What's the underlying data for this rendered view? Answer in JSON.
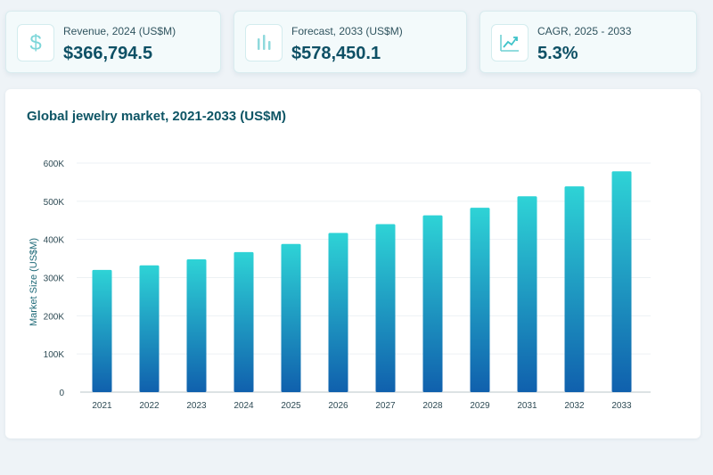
{
  "kpis": [
    {
      "label": "Revenue, 2024 (US$M)",
      "value": "$366,794.5",
      "icon": "dollar-icon"
    },
    {
      "label": "Forecast, 2033 (US$M)",
      "value": "$578,450.1",
      "icon": "bar-chart-icon"
    },
    {
      "label": "CAGR, 2025 - 2033",
      "value": "5.3%",
      "icon": "trend-line-icon"
    }
  ],
  "colors": {
    "accent": "#2ec4cf",
    "title": "#0e5565",
    "bar_top": "#2ed3d6",
    "bar_bottom": "#1060ad"
  },
  "chart_data": {
    "type": "bar",
    "title": "Global jewelry market, 2021-2033 (US$M)",
    "xlabel": "",
    "ylabel": "Market Size (US$M)",
    "categories": [
      "2021",
      "2022",
      "2023",
      "2024",
      "2025",
      "2026",
      "2027",
      "2028",
      "2029",
      "2031",
      "2032",
      "2033"
    ],
    "values": [
      320000,
      332000,
      348000,
      366794.5,
      388000,
      417000,
      440000,
      463000,
      483000,
      513000,
      539000,
      578450.1
    ],
    "ylim": [
      0,
      600000
    ],
    "yticks": [
      0,
      100000,
      200000,
      300000,
      400000,
      500000,
      600000
    ],
    "ytick_labels": [
      "0",
      "100K",
      "200K",
      "300K",
      "400K",
      "500K",
      "600K"
    ],
    "grid": true
  }
}
